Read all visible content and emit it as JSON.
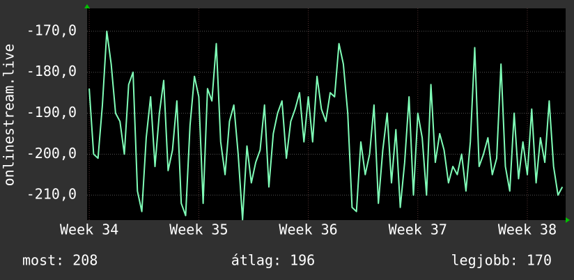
{
  "chart_data": {
    "type": "line",
    "y_label": "onlinestream.live",
    "stats": [
      "most: 208",
      "átlag: 196",
      "legjobb: 170"
    ],
    "color": "#80ffb8",
    "grid": true,
    "xlim": [
      33.98,
      38.35
    ],
    "xticks": [
      {
        "value": 34,
        "label": "Week 34"
      },
      {
        "value": 35,
        "label": "Week 35"
      },
      {
        "value": 36,
        "label": "Week 36"
      },
      {
        "value": 37,
        "label": "Week 37"
      },
      {
        "value": 38,
        "label": "Week 38"
      }
    ],
    "ylim": [
      -216.1,
      -164.4
    ],
    "yticks": [
      {
        "value": -170,
        "label": "-170,0"
      },
      {
        "value": -180,
        "label": "-180,0"
      },
      {
        "value": -190,
        "label": "-190,0"
      },
      {
        "value": -200,
        "label": "-200,0"
      },
      {
        "value": -210,
        "label": "-210,0"
      }
    ],
    "x": [
      34,
      34.04,
      34.08,
      34.12,
      34.16,
      34.2,
      34.24,
      34.28,
      34.32,
      34.36,
      34.4,
      34.44,
      34.48,
      34.52,
      34.56,
      34.6,
      34.64,
      34.68,
      34.72,
      34.76,
      34.8,
      34.84,
      34.88,
      34.92,
      34.96,
      35,
      35.04,
      35.08,
      35.12,
      35.16,
      35.2,
      35.24,
      35.28,
      35.32,
      35.36,
      35.4,
      35.44,
      35.48,
      35.52,
      35.56,
      35.6,
      35.64,
      35.68,
      35.72,
      35.76,
      35.8,
      35.84,
      35.88,
      35.92,
      35.96,
      36,
      36.04,
      36.08,
      36.12,
      36.16,
      36.2,
      36.24,
      36.28,
      36.32,
      36.36,
      36.4,
      36.44,
      36.48,
      36.52,
      36.56,
      36.6,
      36.64,
      36.68,
      36.72,
      36.76,
      36.8,
      36.84,
      36.88,
      36.92,
      36.96,
      37,
      37.04,
      37.08,
      37.12,
      37.16,
      37.2,
      37.24,
      37.28,
      37.32,
      37.36,
      37.4,
      37.44,
      37.48,
      37.52,
      37.56,
      37.6,
      37.64,
      37.68,
      37.72,
      37.76,
      37.8,
      37.84,
      37.88,
      37.92,
      37.96,
      38,
      38.04,
      38.08,
      38.12,
      38.16,
      38.2,
      38.24,
      38.28,
      38.32
    ],
    "values": [
      -184,
      -200,
      -201,
      -188,
      -170,
      -178,
      -190,
      -192,
      -200,
      -183,
      -180,
      -209,
      -214,
      -196,
      -186,
      -203,
      -190,
      -182,
      -204,
      -199,
      -187,
      -212,
      -215,
      -193,
      -181,
      -186,
      -212,
      -184,
      -187,
      -173,
      -197,
      -205,
      -192,
      -188,
      -200,
      -216,
      -198,
      -207,
      -202,
      -199,
      -188,
      -208,
      -195,
      -190,
      -187,
      -201,
      -192,
      -189,
      -185,
      -197,
      -186,
      -197,
      -181,
      -189,
      -192,
      -185,
      -186,
      -173,
      -178,
      -190,
      -213,
      -214,
      -197,
      -205,
      -200,
      -188,
      -212,
      -199,
      -190,
      -207,
      -194,
      -213,
      -202,
      -186,
      -210,
      -190,
      -196,
      -210,
      -183,
      -202,
      -195,
      -199,
      -207,
      -203,
      -205,
      -200,
      -209,
      -197,
      -174,
      -203,
      -200,
      -196,
      -205,
      -201,
      -178,
      -203,
      -209,
      -190,
      -206,
      -197,
      -205,
      -189,
      -207,
      -196,
      -202,
      -187,
      -203,
      -210,
      -208
    ]
  }
}
